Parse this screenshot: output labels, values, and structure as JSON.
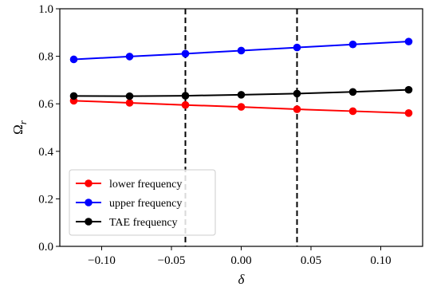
{
  "chart_data": {
    "type": "line",
    "xlabel": "δ",
    "ylabel": "Ω",
    "ylabel_subscript": "r",
    "xlim": [
      -0.13,
      0.13
    ],
    "ylim": [
      0.0,
      1.0
    ],
    "xticks": [
      -0.1,
      -0.05,
      0.0,
      0.05,
      0.1
    ],
    "xtick_labels": [
      "−0.10",
      "−0.05",
      "0.00",
      "0.05",
      "0.10"
    ],
    "yticks": [
      0.0,
      0.2,
      0.4,
      0.6,
      0.8,
      1.0
    ],
    "ytick_labels": [
      "0.0",
      "0.2",
      "0.4",
      "0.6",
      "0.8",
      "1.0"
    ],
    "grid": false,
    "legend_position": "lower-left",
    "x": [
      -0.12,
      -0.08,
      -0.04,
      0.0,
      0.04,
      0.08,
      0.12
    ],
    "series": [
      {
        "name": "lower frequency",
        "color": "#ff0000",
        "values": [
          0.613,
          0.604,
          0.595,
          0.587,
          0.577,
          0.569,
          0.561
        ]
      },
      {
        "name": "upper frequency",
        "color": "#0000ff",
        "values": [
          0.787,
          0.799,
          0.811,
          0.824,
          0.837,
          0.85,
          0.862
        ]
      },
      {
        "name": "TAE frequency",
        "color": "#000000",
        "values": [
          0.633,
          0.632,
          0.634,
          0.638,
          0.643,
          0.65,
          0.659
        ]
      }
    ],
    "vertical_lines": [
      {
        "x": -0.04,
        "style": "dashed",
        "color": "#000000"
      },
      {
        "x": 0.04,
        "style": "dashed",
        "color": "#000000"
      }
    ]
  }
}
